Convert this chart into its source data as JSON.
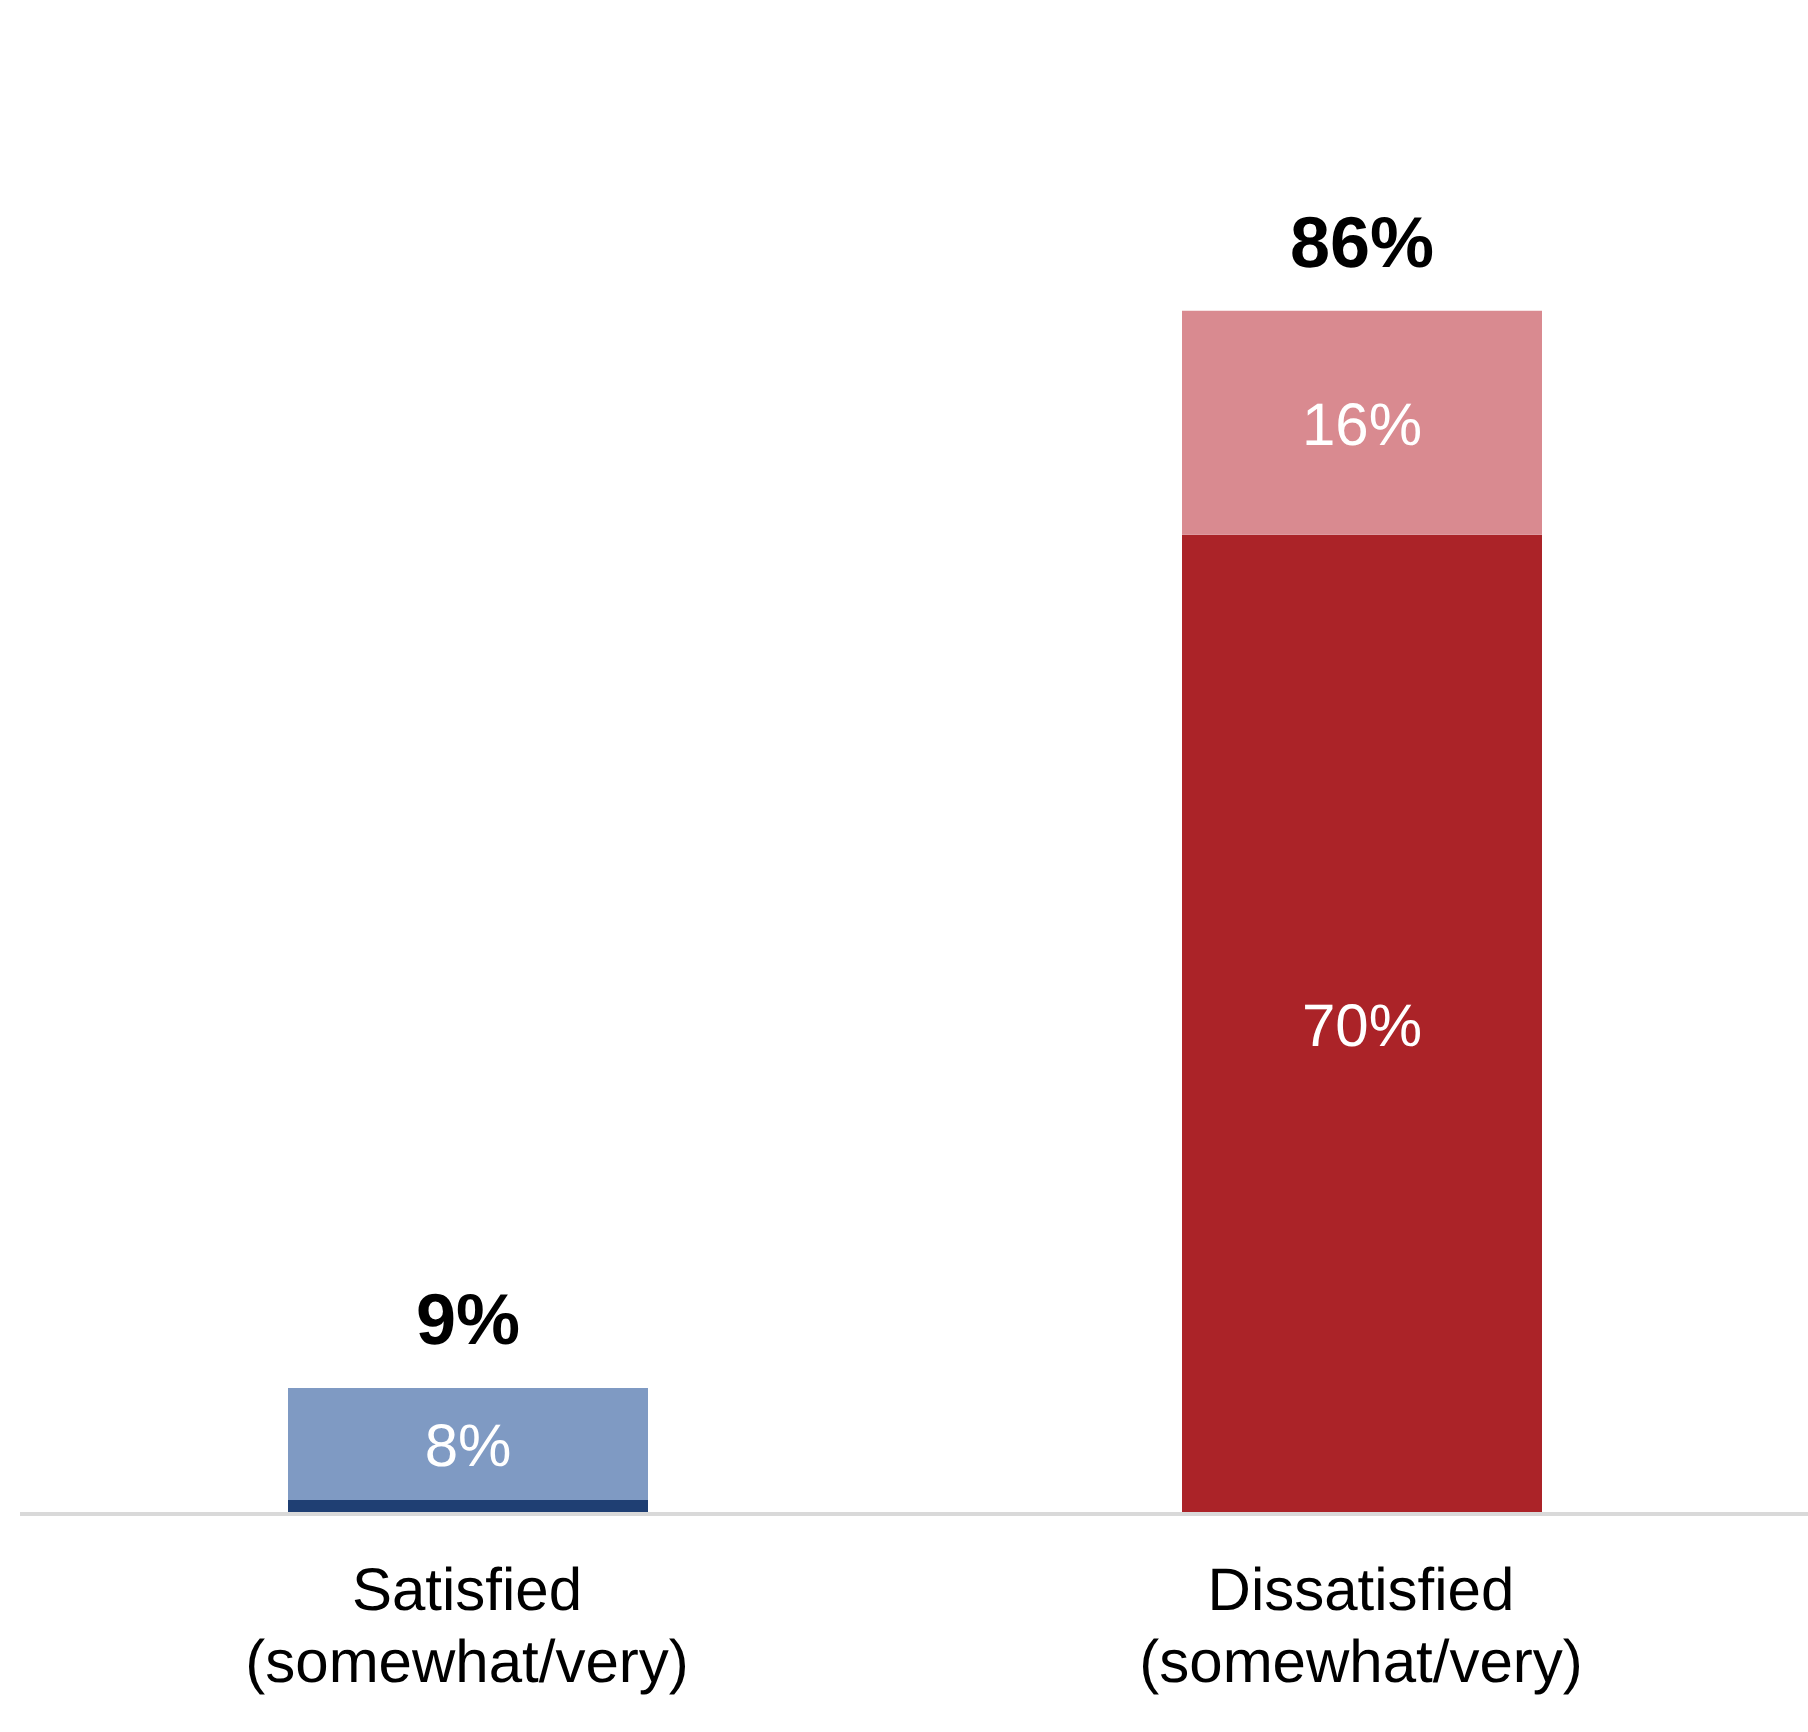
{
  "chart_data": {
    "type": "bar",
    "stacked": true,
    "categories": [
      "Satisfied (somewhat/very)",
      "Dissatisfied (somewhat/very)"
    ],
    "series": [
      {
        "colors": [
          "#1f3f73",
          "#ab2328"
        ],
        "values": [
          1,
          70
        ],
        "value_labels": [
          null,
          "70%"
        ]
      },
      {
        "colors": [
          "#7f9ac3",
          "#d98a90"
        ],
        "values": [
          8,
          16
        ],
        "value_labels": [
          "8%",
          "16%"
        ]
      }
    ],
    "totals": [
      "9%",
      "86%"
    ],
    "grid": false,
    "legend": false
  }
}
